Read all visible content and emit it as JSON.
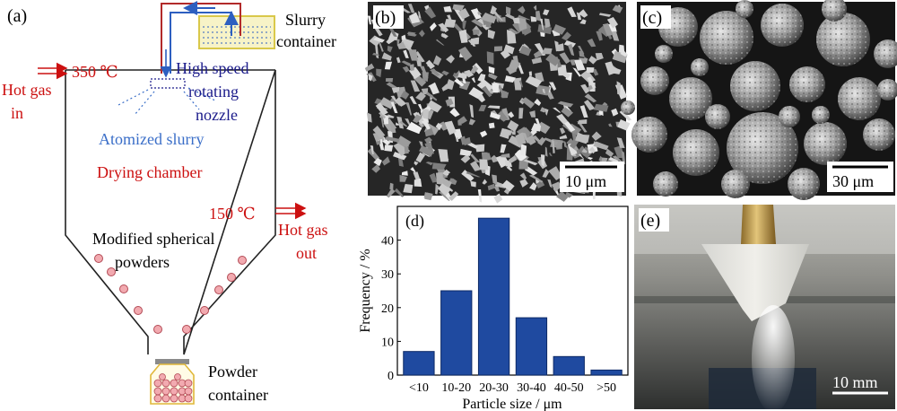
{
  "panel_a": {
    "letter": "(a)",
    "slurry_container": [
      "Slurry",
      "container"
    ],
    "nozzle": [
      "High speed",
      "rotating",
      "nozzle"
    ],
    "inlet_temp": "350 ℃",
    "hot_gas_in": [
      "Hot gas",
      "in"
    ],
    "atomized": "Atomized slurry",
    "drying_chamber": "Drying chamber",
    "outlet_temp": "150 ℃",
    "hot_gas_out": [
      "Hot gas",
      "out"
    ],
    "modified_powders": [
      "Modified spherical",
      "powders"
    ],
    "powder_container": [
      "Powder",
      "container"
    ]
  },
  "panel_b": {
    "letter": "(b)",
    "scale": "10 μm"
  },
  "panel_c": {
    "letter": "(c)",
    "scale": "30 μm"
  },
  "panel_e": {
    "letter": "(e)",
    "scale": "10 mm"
  },
  "colors": {
    "gas_red": "#cc1010",
    "nozzle_blue": "#1a1a8a",
    "atomized_blue": "#3a6ec8",
    "bar_blue": "#1f4aa0",
    "particle_pink": "#f2aab0",
    "slurry_tank": "#e8e070"
  },
  "chart_data": {
    "type": "bar",
    "panel_letter": "(d)",
    "categories": [
      "<10",
      "10-20",
      "20-30",
      "30-40",
      "40-50",
      ">50"
    ],
    "values": [
      7,
      25,
      46.5,
      17,
      5.5,
      1.5
    ],
    "xlabel": "Particle size / μm",
    "ylabel": "Frequency / %",
    "ylim": [
      0,
      50
    ],
    "yticks": [
      0,
      10,
      20,
      30,
      40
    ],
    "grid": false
  }
}
